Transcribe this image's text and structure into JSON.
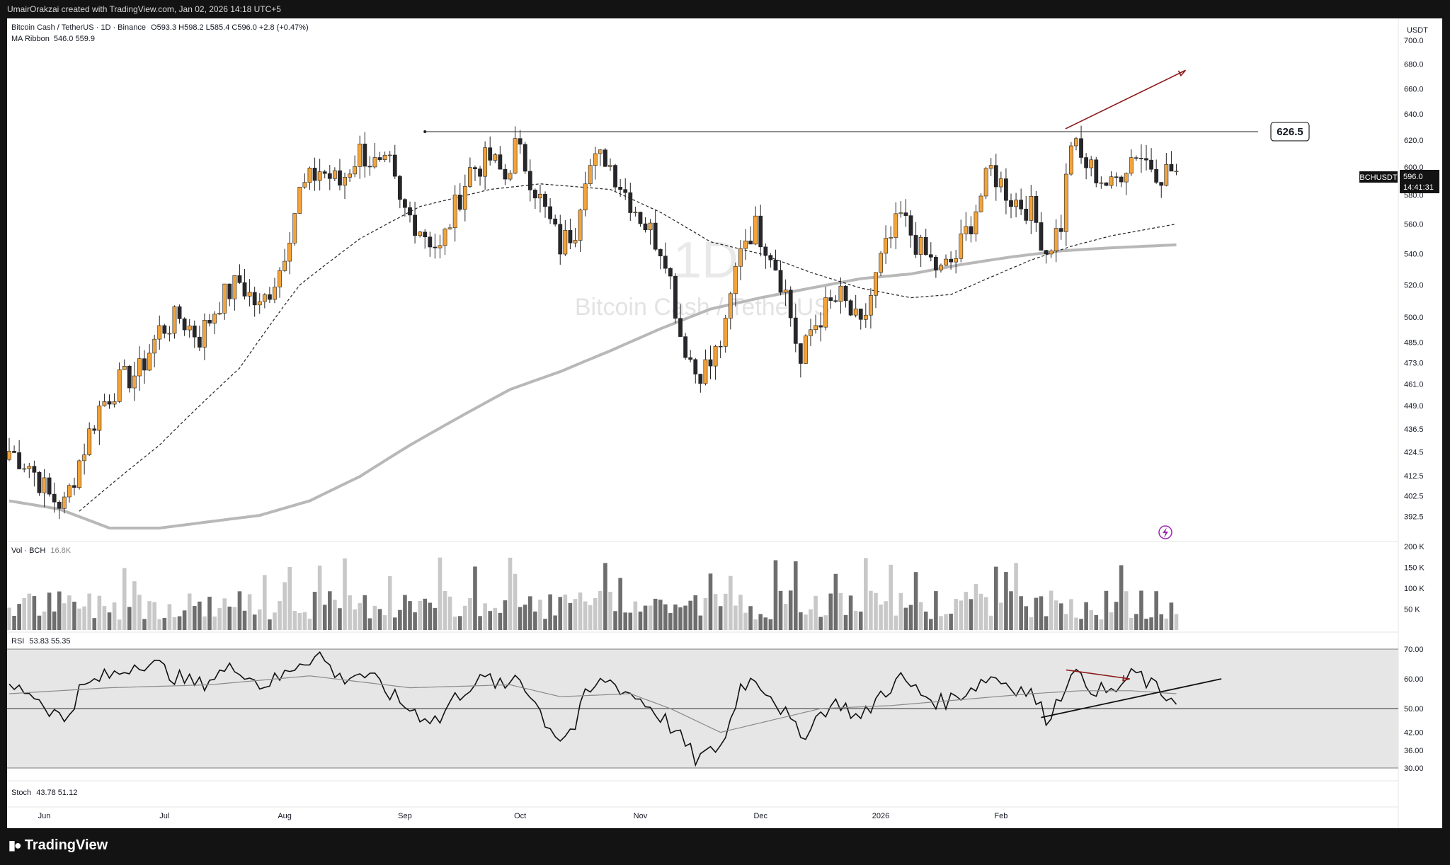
{
  "header": {
    "credit": "UmairOrakzai created with TradingView.com, Jan 02, 2026 14:18 UTC+5"
  },
  "footer": {
    "brand": "TradingView"
  },
  "symbol": {
    "title": "Bitcoin Cash / TetherUS · 1D · Binance",
    "ohlc": "O593.3 H598.2 L585.4 C596.0 +2.8 (+0.47%)",
    "watermark_interval": "1D",
    "watermark_name": "Bitcoin Cash / TetherUS",
    "ticker": "BCHUSDT",
    "last_price": "596.0",
    "countdown": "14:41:31",
    "currency": "USDT"
  },
  "indicators": {
    "ma_ribbon": {
      "label": "MA Ribbon",
      "values": "546.0 559.9"
    },
    "volume": {
      "label": "Vol · BCH",
      "value": "16.8K"
    },
    "rsi": {
      "label": "RSI",
      "values": "53.83 55.35"
    },
    "stoch": {
      "label": "Stoch",
      "values": "43.78 51.12"
    }
  },
  "annotations": {
    "resistance_label": "626.5"
  },
  "colors": {
    "candle_up": "#f2a33a",
    "candle_down": "#26262b",
    "volume_up": "#c8c8c8",
    "volume_down": "#6e6e6e",
    "ma_fast": "#222222",
    "ma_slow": "#b8b8b8",
    "divergence_arrow": "#8b1a1a",
    "rsi_band": "#e6e6e6",
    "lightning_icon": "#9c27b0"
  },
  "chart_data": {
    "type": "candlestick",
    "title": "Bitcoin Cash / TetherUS · 1D · Binance",
    "x_time_labels": [
      "Jun",
      "Jul",
      "Aug",
      "Sep",
      "Oct",
      "Nov",
      "Dec",
      "2026",
      "Feb"
    ],
    "price_axis": {
      "scale": "log",
      "ticks": [
        "700.0",
        "680.0",
        "660.0",
        "640.0",
        "620.0",
        "600.0",
        "580.0",
        "560.0",
        "540.0",
        "520.0",
        "500.0",
        "485.0",
        "473.0",
        "461.0",
        "449.0",
        "436.5",
        "424.5",
        "412.5",
        "402.5",
        "392.5"
      ],
      "range": [
        385,
        700
      ]
    },
    "volume_axis": {
      "ticks": [
        "200 K",
        "150 K",
        "100 K",
        "50 K"
      ],
      "range": [
        0,
        200000
      ]
    },
    "rsi_axis": {
      "ticks": [
        "70.00",
        "60.00",
        "50.00",
        "42.00",
        "36.00",
        "30.00"
      ],
      "band": [
        30,
        70
      ],
      "midline": 50
    },
    "ohlc_anchor_closes": [
      [
        0,
        425
      ],
      [
        4,
        418
      ],
      [
        8,
        402
      ],
      [
        11,
        398
      ],
      [
        14,
        420
      ],
      [
        18,
        448
      ],
      [
        22,
        462
      ],
      [
        26,
        468
      ],
      [
        30,
        492
      ],
      [
        34,
        500
      ],
      [
        38,
        488
      ],
      [
        42,
        510
      ],
      [
        46,
        522
      ],
      [
        50,
        505
      ],
      [
        54,
        530
      ],
      [
        58,
        582
      ],
      [
        62,
        598
      ],
      [
        66,
        588
      ],
      [
        70,
        612
      ],
      [
        74,
        598
      ],
      [
        76,
        600
      ],
      [
        78,
        572
      ],
      [
        82,
        558
      ],
      [
        86,
        542
      ],
      [
        88,
        562
      ],
      [
        92,
        598
      ],
      [
        96,
        606
      ],
      [
        99,
        592
      ],
      [
        101,
        615
      ],
      [
        103,
        602
      ],
      [
        105,
        585
      ],
      [
        107,
        568
      ],
      [
        110,
        545
      ],
      [
        113,
        558
      ],
      [
        115,
        598
      ],
      [
        119,
        608
      ],
      [
        123,
        582
      ],
      [
        127,
        560
      ],
      [
        131,
        540
      ],
      [
        134,
        490
      ],
      [
        137,
        468
      ],
      [
        140,
        472
      ],
      [
        143,
        492
      ],
      [
        146,
        548
      ],
      [
        149,
        558
      ],
      [
        152,
        542
      ],
      [
        155,
        515
      ],
      [
        158,
        472
      ],
      [
        160,
        492
      ],
      [
        163,
        505
      ],
      [
        166,
        512
      ],
      [
        170,
        492
      ],
      [
        174,
        535
      ],
      [
        178,
        565
      ],
      [
        182,
        542
      ],
      [
        186,
        528
      ],
      [
        189,
        538
      ],
      [
        192,
        562
      ],
      [
        196,
        598
      ],
      [
        200,
        578
      ],
      [
        204,
        570
      ],
      [
        207,
        542
      ],
      [
        210,
        560
      ],
      [
        212,
        620
      ],
      [
        214,
        605
      ],
      [
        218,
        592
      ],
      [
        220,
        585
      ],
      [
        222,
        598
      ],
      [
        225,
        612
      ],
      [
        227,
        605
      ],
      [
        230,
        596
      ],
      [
        232,
        598
      ],
      [
        233,
        596
      ]
    ],
    "ma_fast_anchors": [
      [
        14,
        395
      ],
      [
        30,
        428
      ],
      [
        46,
        470
      ],
      [
        58,
        520
      ],
      [
        70,
        550
      ],
      [
        82,
        572
      ],
      [
        96,
        584
      ],
      [
        106,
        588
      ],
      [
        120,
        584
      ],
      [
        130,
        568
      ],
      [
        140,
        548
      ],
      [
        150,
        540
      ],
      [
        160,
        528
      ],
      [
        170,
        518
      ],
      [
        180,
        512
      ],
      [
        188,
        514
      ],
      [
        196,
        525
      ],
      [
        204,
        536
      ],
      [
        212,
        545
      ],
      [
        220,
        552
      ],
      [
        233,
        560
      ]
    ],
    "ma_slow_anchors": [
      [
        0,
        400
      ],
      [
        10,
        396
      ],
      [
        20,
        387
      ],
      [
        30,
        387
      ],
      [
        40,
        390
      ],
      [
        50,
        393
      ],
      [
        60,
        400
      ],
      [
        70,
        412
      ],
      [
        80,
        428
      ],
      [
        90,
        443
      ],
      [
        100,
        458
      ],
      [
        110,
        468
      ],
      [
        120,
        480
      ],
      [
        130,
        493
      ],
      [
        140,
        505
      ],
      [
        150,
        512
      ],
      [
        160,
        518
      ],
      [
        170,
        524
      ],
      [
        180,
        527
      ],
      [
        190,
        533
      ],
      [
        200,
        538
      ],
      [
        210,
        542
      ],
      [
        220,
        544
      ],
      [
        233,
        546
      ]
    ],
    "resistance_level": 626.5,
    "rsi_anchors": [
      [
        0,
        57
      ],
      [
        4,
        56
      ],
      [
        8,
        50
      ],
      [
        11,
        46
      ],
      [
        14,
        56
      ],
      [
        18,
        60
      ],
      [
        22,
        62
      ],
      [
        26,
        66
      ],
      [
        30,
        64
      ],
      [
        34,
        60
      ],
      [
        38,
        58
      ],
      [
        42,
        62
      ],
      [
        46,
        64
      ],
      [
        50,
        58
      ],
      [
        54,
        60
      ],
      [
        58,
        66
      ],
      [
        62,
        68
      ],
      [
        66,
        60
      ],
      [
        70,
        62
      ],
      [
        74,
        58
      ],
      [
        78,
        52
      ],
      [
        82,
        48
      ],
      [
        86,
        46
      ],
      [
        88,
        52
      ],
      [
        92,
        58
      ],
      [
        96,
        60
      ],
      [
        99,
        56
      ],
      [
        101,
        62
      ],
      [
        103,
        58
      ],
      [
        105,
        52
      ],
      [
        107,
        46
      ],
      [
        110,
        40
      ],
      [
        113,
        44
      ],
      [
        115,
        54
      ],
      [
        119,
        60
      ],
      [
        123,
        56
      ],
      [
        127,
        52
      ],
      [
        131,
        46
      ],
      [
        134,
        40
      ],
      [
        137,
        33
      ],
      [
        140,
        35
      ],
      [
        143,
        40
      ],
      [
        146,
        58
      ],
      [
        149,
        60
      ],
      [
        152,
        55
      ],
      [
        155,
        48
      ],
      [
        158,
        40
      ],
      [
        160,
        45
      ],
      [
        163,
        50
      ],
      [
        166,
        52
      ],
      [
        170,
        46
      ],
      [
        174,
        55
      ],
      [
        178,
        60
      ],
      [
        182,
        55
      ],
      [
        186,
        52
      ],
      [
        189,
        54
      ],
      [
        192,
        57
      ],
      [
        196,
        61
      ],
      [
        200,
        58
      ],
      [
        204,
        55
      ],
      [
        207,
        47
      ],
      [
        210,
        54
      ],
      [
        212,
        64
      ],
      [
        214,
        59
      ],
      [
        218,
        56
      ],
      [
        220,
        55
      ],
      [
        222,
        58
      ],
      [
        225,
        62
      ],
      [
        227,
        59
      ],
      [
        230,
        55
      ],
      [
        232,
        54
      ],
      [
        233,
        54
      ]
    ],
    "rsi_ma_anchors": [
      [
        0,
        55
      ],
      [
        20,
        57
      ],
      [
        40,
        58
      ],
      [
        60,
        61
      ],
      [
        80,
        57
      ],
      [
        100,
        58
      ],
      [
        110,
        54
      ],
      [
        124,
        55
      ],
      [
        132,
        50
      ],
      [
        142,
        42
      ],
      [
        152,
        46
      ],
      [
        162,
        50
      ],
      [
        176,
        51
      ],
      [
        190,
        53
      ],
      [
        204,
        55
      ],
      [
        214,
        56
      ],
      [
        224,
        56
      ],
      [
        233,
        55
      ]
    ]
  }
}
